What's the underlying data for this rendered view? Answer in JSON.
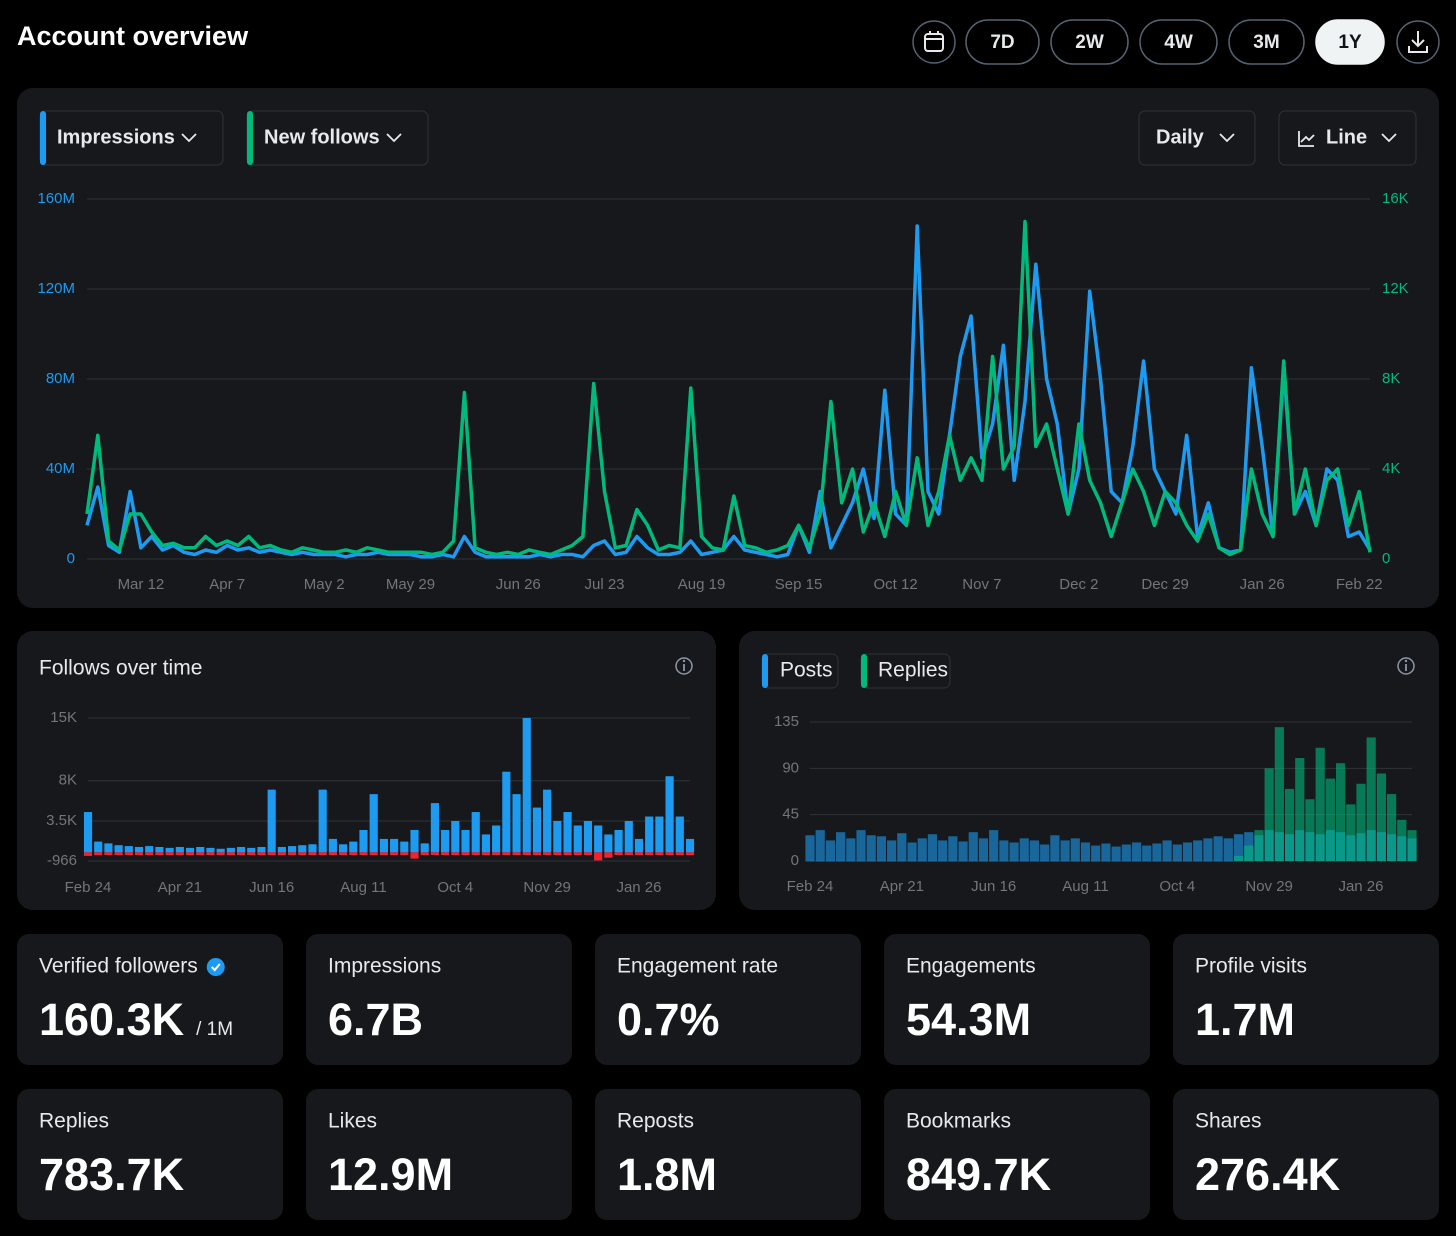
{
  "header": {
    "title": "Account overview",
    "ranges": [
      "7D",
      "2W",
      "4W",
      "3M",
      "1Y"
    ],
    "selected_range": 4
  },
  "controls": {
    "interval": "Daily",
    "style": "Line"
  },
  "chart_data": [
    {
      "type": "line",
      "grid": true,
      "categories": [
        null,
        null,
        null,
        null,
        null,
        "Mar 12",
        null,
        null,
        null,
        null,
        null,
        null,
        null,
        "Apr 7",
        null,
        null,
        null,
        null,
        null,
        null,
        null,
        null,
        "May 2",
        null,
        null,
        null,
        null,
        null,
        null,
        null,
        "May 29",
        null,
        null,
        null,
        null,
        null,
        null,
        null,
        null,
        null,
        "Jun 26",
        null,
        null,
        null,
        null,
        null,
        null,
        null,
        "Jul 23",
        null,
        null,
        null,
        null,
        null,
        null,
        null,
        null,
        "Aug 19",
        null,
        null,
        null,
        null,
        null,
        null,
        null,
        null,
        "Sep 15",
        null,
        null,
        null,
        null,
        null,
        null,
        null,
        null,
        "Oct 12",
        null,
        null,
        null,
        null,
        null,
        null,
        null,
        "Nov 7",
        null,
        null,
        null,
        null,
        null,
        null,
        null,
        null,
        "Dec 2",
        null,
        null,
        null,
        null,
        null,
        null,
        null,
        "Dec 29",
        null,
        null,
        null,
        null,
        null,
        null,
        null,
        null,
        "Jan 26",
        null,
        null,
        null,
        null,
        null,
        null,
        null,
        null,
        "Feb 22",
        null
      ],
      "series": [
        {
          "name": "Impressions",
          "color": "#1d9bf0",
          "values": [
            15,
            32,
            6,
            3,
            30,
            5,
            10,
            4,
            6,
            3,
            2,
            4,
            3,
            6,
            4,
            5,
            3,
            4,
            3,
            2,
            3,
            2,
            2,
            2,
            1,
            2,
            2,
            3,
            2,
            2,
            2,
            1,
            1,
            2,
            1,
            10,
            3,
            1,
            1,
            1,
            1,
            1,
            2,
            1,
            2,
            2,
            1,
            6,
            8,
            2,
            3,
            10,
            5,
            2,
            2,
            3,
            8,
            2,
            3,
            4,
            10,
            4,
            3,
            2,
            1,
            2,
            15,
            3,
            30,
            5,
            15,
            25,
            40,
            18,
            75,
            20,
            15,
            148,
            30,
            20,
            55,
            90,
            108,
            45,
            60,
            95,
            35,
            70,
            131,
            80,
            60,
            20,
            40,
            119,
            80,
            30,
            25,
            50,
            88,
            40,
            30,
            20,
            55,
            10,
            25,
            5,
            3,
            4,
            85,
            50,
            10,
            85,
            20,
            30,
            15,
            40,
            35,
            10,
            12,
            4
          ]
        },
        {
          "name": "New follows",
          "color": "#00ba7c",
          "axis": "y2",
          "values": [
            2,
            5.5,
            0.8,
            0.4,
            2,
            2,
            1.2,
            0.6,
            0.7,
            0.5,
            0.5,
            1,
            0.6,
            0.8,
            0.6,
            1,
            0.5,
            0.6,
            0.4,
            0.3,
            0.5,
            0.4,
            0.3,
            0.3,
            0.4,
            0.3,
            0.5,
            0.4,
            0.3,
            0.3,
            0.3,
            0.3,
            0.2,
            0.3,
            0.8,
            7.4,
            0.5,
            0.3,
            0.2,
            0.3,
            0.2,
            0.4,
            0.3,
            0.2,
            0.4,
            0.6,
            1,
            7.8,
            3,
            0.5,
            0.6,
            2.2,
            1.5,
            0.4,
            0.6,
            0.5,
            7.6,
            1,
            0.5,
            0.4,
            2.8,
            0.6,
            0.5,
            0.3,
            0.4,
            0.6,
            1.5,
            0.5,
            2,
            7,
            2.5,
            4,
            1.2,
            2.5,
            1,
            3,
            1.5,
            4.5,
            1.5,
            3,
            5.5,
            3.5,
            4.5,
            3.5,
            9,
            4,
            5,
            15,
            5,
            6,
            4,
            2,
            6,
            3.5,
            2.5,
            1,
            2.5,
            4,
            3,
            1.5,
            3,
            2.5,
            1.5,
            0.8,
            2,
            0.5,
            0.2,
            0.4,
            4,
            2,
            1,
            8.8,
            2,
            4,
            1.5,
            3.5,
            4,
            1.5,
            3,
            0.3
          ]
        }
      ],
      "ylim": [
        0,
        160
      ],
      "yticks": [
        0,
        {
          "value": 40,
          "label": "40M"
        },
        {
          "value": 80,
          "label": "80M"
        },
        {
          "value": 120,
          "label": "120M"
        },
        {
          "value": 160,
          "label": "160M"
        }
      ],
      "y2lim": [
        0,
        16
      ],
      "y2ticks": [
        0,
        {
          "value": 4,
          "label": "4K"
        },
        {
          "value": 8,
          "label": "8K"
        },
        {
          "value": 12,
          "label": "12K"
        },
        {
          "value": 16,
          "label": "16K"
        }
      ]
    },
    {
      "type": "bar",
      "title": "Follows over time",
      "grid": true,
      "categories": [
        "Feb 24",
        null,
        null,
        null,
        null,
        null,
        null,
        null,
        null,
        "Apr 21",
        null,
        null,
        null,
        null,
        null,
        null,
        null,
        null,
        "Jun 16",
        null,
        null,
        null,
        null,
        null,
        null,
        null,
        null,
        "Aug 11",
        null,
        null,
        null,
        null,
        null,
        null,
        null,
        null,
        "Oct 4",
        null,
        null,
        null,
        null,
        null,
        null,
        null,
        null,
        "Nov 29",
        null,
        null,
        null,
        null,
        null,
        null,
        null,
        null,
        "Jan 26",
        null,
        null,
        null,
        null,
        null
      ],
      "series": [
        {
          "color": "#1d9bf0",
          "values": [
            4500,
            1200,
            1000,
            800,
            700,
            600,
            700,
            600,
            500,
            600,
            500,
            600,
            500,
            400,
            500,
            600,
            500,
            600,
            7000,
            600,
            700,
            800,
            900,
            7000,
            1500,
            900,
            1200,
            2500,
            6500,
            1500,
            1500,
            1200,
            2500,
            1000,
            5500,
            2500,
            3500,
            2500,
            4500,
            2000,
            3000,
            9000,
            6500,
            15000,
            5000,
            7000,
            3500,
            4500,
            3000,
            3500,
            3000,
            2000,
            2500,
            3500,
            1500,
            4000,
            4000,
            8500,
            4000,
            1500
          ]
        },
        {
          "color": "#f4212e",
          "values": [
            -400,
            -300,
            -300,
            -300,
            -300,
            -300,
            -300,
            -300,
            -300,
            -300,
            -300,
            -300,
            -300,
            -300,
            -300,
            -300,
            -300,
            -300,
            -300,
            -300,
            -300,
            -300,
            -300,
            -300,
            -300,
            -300,
            -300,
            -300,
            -300,
            -300,
            -300,
            -300,
            -700,
            -300,
            -300,
            -300,
            -300,
            -300,
            -300,
            -300,
            -300,
            -300,
            -300,
            -300,
            -300,
            -300,
            -300,
            -300,
            -300,
            -300,
            -900,
            -600,
            -300,
            -300,
            -300,
            -300,
            -300,
            -300,
            -300,
            -300
          ]
        }
      ],
      "ylim": [
        -966,
        15000
      ],
      "yticks": [
        -966,
        {
          "value": 3500,
          "label": "3.5K"
        },
        {
          "value": 8000,
          "label": "8K"
        },
        {
          "value": 15000,
          "label": "15K"
        }
      ]
    },
    {
      "type": "bar",
      "grid": true,
      "categories": [
        "Feb 24",
        null,
        null,
        null,
        null,
        null,
        null,
        null,
        null,
        "Apr 21",
        null,
        null,
        null,
        null,
        null,
        null,
        null,
        null,
        "Jun 16",
        null,
        null,
        null,
        null,
        null,
        null,
        null,
        null,
        "Aug 11",
        null,
        null,
        null,
        null,
        null,
        null,
        null,
        null,
        "Oct 4",
        null,
        null,
        null,
        null,
        null,
        null,
        null,
        null,
        "Nov 29",
        null,
        null,
        null,
        null,
        null,
        null,
        null,
        null,
        "Jan 26",
        null,
        null,
        null,
        null,
        null
      ],
      "series": [
        {
          "name": "Posts",
          "color": "#1d9bf0",
          "values": [
            25,
            30,
            20,
            28,
            22,
            30,
            25,
            24,
            20,
            27,
            18,
            22,
            26,
            20,
            24,
            19,
            28,
            22,
            30,
            20,
            18,
            22,
            20,
            16,
            25,
            20,
            22,
            18,
            15,
            17,
            14,
            16,
            18,
            15,
            17,
            20,
            16,
            18,
            20,
            22,
            24,
            22,
            26,
            28,
            25,
            30,
            28,
            26,
            30,
            28,
            26,
            30,
            28,
            25,
            27,
            30,
            28,
            26,
            24,
            22
          ]
        },
        {
          "name": "Replies",
          "color": "#00ba7c",
          "values": [
            0,
            0,
            0,
            0,
            0,
            0,
            0,
            0,
            0,
            0,
            0,
            0,
            0,
            0,
            0,
            0,
            0,
            0,
            0,
            0,
            0,
            0,
            0,
            0,
            0,
            0,
            0,
            0,
            0,
            0,
            0,
            0,
            0,
            0,
            0,
            0,
            0,
            0,
            0,
            0,
            0,
            0,
            5,
            15,
            30,
            90,
            130,
            70,
            100,
            60,
            110,
            80,
            95,
            55,
            75,
            120,
            85,
            65,
            40,
            30
          ]
        }
      ],
      "ylim": [
        0,
        135
      ],
      "yticks": [
        0,
        45,
        90,
        135
      ]
    }
  ],
  "stats": [
    {
      "label": "Verified followers",
      "value": "160.3K",
      "suffix": "/ 1M",
      "verified": true
    },
    {
      "label": "Impressions",
      "value": "6.7B"
    },
    {
      "label": "Engagement rate",
      "value": "0.7%"
    },
    {
      "label": "Engagements",
      "value": "54.3M"
    },
    {
      "label": "Profile visits",
      "value": "1.7M"
    },
    {
      "label": "Replies",
      "value": "783.7K"
    },
    {
      "label": "Likes",
      "value": "12.9M"
    },
    {
      "label": "Reposts",
      "value": "1.8M"
    },
    {
      "label": "Bookmarks",
      "value": "849.7K"
    },
    {
      "label": "Shares",
      "value": "276.4K"
    }
  ]
}
